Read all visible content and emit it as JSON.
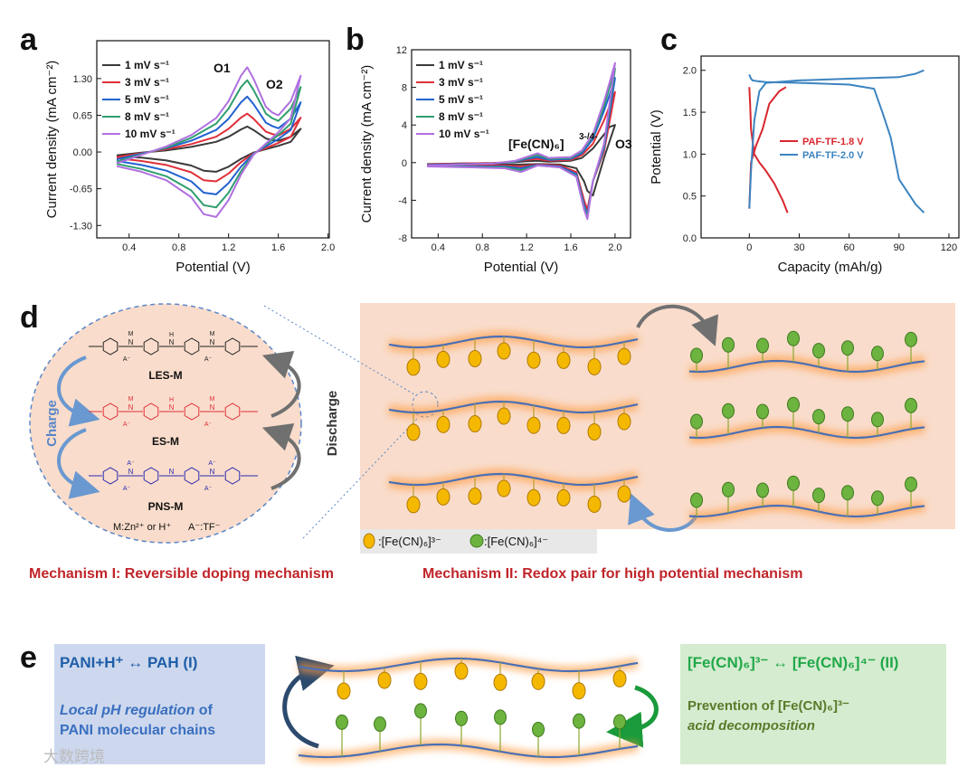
{
  "chart_data": [
    {
      "type": "line",
      "xlabel": "Potential (V)",
      "ylabel": "Current density (mA cm⁻²)",
      "x": [
        0.3,
        0.5,
        0.7,
        0.9,
        1.1,
        1.2,
        1.3,
        1.35,
        1.4,
        1.5,
        1.55,
        1.6,
        1.7,
        1.78,
        1.7,
        1.6,
        1.5,
        1.4,
        1.3,
        1.2,
        1.1,
        1.0,
        0.9,
        0.7,
        0.5,
        0.3
      ],
      "series": [
        {
          "name": "1 mV s⁻¹",
          "color": "#3a3a3a",
          "values": [
            -0.06,
            -0.01,
            0.03,
            0.09,
            0.18,
            0.27,
            0.4,
            0.45,
            0.39,
            0.24,
            0.21,
            0.2,
            0.27,
            0.41,
            0.18,
            0.11,
            0.05,
            -0.01,
            -0.12,
            -0.26,
            -0.35,
            -0.33,
            -0.24,
            -0.15,
            -0.1,
            -0.08
          ]
        },
        {
          "name": "3 mV s⁻¹",
          "color": "#e0303a",
          "values": [
            -0.09,
            -0.02,
            0.05,
            0.14,
            0.27,
            0.41,
            0.61,
            0.68,
            0.59,
            0.36,
            0.32,
            0.29,
            0.41,
            0.61,
            0.27,
            0.16,
            0.07,
            -0.02,
            -0.18,
            -0.38,
            -0.52,
            -0.5,
            -0.36,
            -0.23,
            -0.16,
            -0.11
          ]
        },
        {
          "name": "5 mV s⁻¹",
          "color": "#2262d0",
          "values": [
            -0.13,
            -0.03,
            0.07,
            0.2,
            0.39,
            0.59,
            0.88,
            0.98,
            0.85,
            0.52,
            0.46,
            0.42,
            0.59,
            0.88,
            0.39,
            0.23,
            0.1,
            -0.03,
            -0.26,
            -0.55,
            -0.75,
            -0.72,
            -0.52,
            -0.33,
            -0.23,
            -0.16
          ]
        },
        {
          "name": "8 mV s⁻¹",
          "color": "#2f9e6e",
          "values": [
            -0.17,
            -0.04,
            0.08,
            0.25,
            0.5,
            0.77,
            1.15,
            1.27,
            1.1,
            0.68,
            0.6,
            0.55,
            0.77,
            1.15,
            0.5,
            0.3,
            0.13,
            -0.04,
            -0.34,
            -0.72,
            -0.98,
            -0.94,
            -0.68,
            -0.43,
            -0.3,
            -0.21
          ]
        },
        {
          "name": "10 mV s⁻¹",
          "color": "#b070e0",
          "values": [
            -0.2,
            -0.05,
            0.1,
            0.3,
            0.6,
            0.9,
            1.35,
            1.5,
            1.3,
            0.8,
            0.7,
            0.65,
            0.9,
            1.35,
            0.6,
            0.35,
            0.15,
            -0.05,
            -0.4,
            -0.85,
            -1.15,
            -1.1,
            -0.8,
            -0.5,
            -0.35,
            -0.25
          ]
        }
      ],
      "xlim": [
        0.14,
        2.01
      ],
      "ylim": [
        -1.52,
        1.97
      ],
      "xticks": [
        0.4,
        0.8,
        1.2,
        1.6,
        {
          "value": 2,
          "label": "2.0"
        }
      ],
      "yticks": [
        {
          "value": -1.3,
          "label": "-1.30"
        },
        {
          "value": -0.65,
          "label": "-0.65"
        },
        {
          "value": 0,
          "label": "0.00"
        },
        {
          "value": 0.65,
          "label": "0.65"
        },
        {
          "value": 1.3,
          "label": "1.30"
        }
      ],
      "legend": "upper left",
      "annotations": [
        "O1",
        "O2"
      ]
    },
    {
      "type": "line",
      "xlabel": "Potential (V)",
      "ylabel": "Current density (mA cm⁻²)",
      "x": [
        0.3,
        0.6,
        0.9,
        1.1,
        1.2,
        1.3,
        1.4,
        1.6,
        1.7,
        1.8,
        1.9,
        1.95,
        2.0,
        1.9,
        1.8,
        1.75,
        1.72,
        1.65,
        1.5,
        1.3,
        1.15,
        1.0,
        0.7,
        0.3
      ],
      "series": [
        {
          "name": "1 mV s⁻¹",
          "color": "#3a3a3a",
          "values": [
            -0.15,
            -0.1,
            -0.05,
            0.05,
            0.15,
            0.2,
            0.1,
            0.2,
            0.5,
            1.5,
            3.0,
            3.8,
            4.0,
            0.5,
            -3.5,
            -3.0,
            -2.0,
            -0.6,
            -0.2,
            -0.15,
            -0.2,
            -0.2,
            -0.2,
            -0.15
          ]
        },
        {
          "name": "3 mV s⁻¹",
          "color": "#e0303a",
          "values": [
            -0.2,
            -0.1,
            -0.05,
            0.1,
            0.3,
            0.4,
            0.2,
            0.3,
            0.8,
            2.0,
            4.5,
            6.0,
            7.5,
            1.2,
            -2.0,
            -5.0,
            -4.0,
            -1.0,
            -0.3,
            -0.2,
            -0.4,
            -0.3,
            -0.3,
            -0.25
          ]
        },
        {
          "name": "5 mV s⁻¹",
          "color": "#2262d0",
          "values": [
            -0.25,
            -0.15,
            -0.1,
            0.1,
            0.4,
            0.6,
            0.3,
            0.4,
            1.0,
            2.5,
            5.5,
            7.2,
            9.0,
            1.5,
            -2.0,
            -5.5,
            -4.5,
            -1.2,
            -0.4,
            -0.25,
            -0.6,
            -0.4,
            -0.4,
            -0.3
          ]
        },
        {
          "name": "8 mV s⁻¹",
          "color": "#2f9e6e",
          "values": [
            -0.3,
            -0.2,
            -0.1,
            0.15,
            0.5,
            0.8,
            0.4,
            0.5,
            1.2,
            2.8,
            6.0,
            8.0,
            10.0,
            1.8,
            -2.0,
            -5.8,
            -4.8,
            -1.4,
            -0.5,
            -0.3,
            -0.8,
            -0.5,
            -0.45,
            -0.35
          ]
        },
        {
          "name": "10 mV s⁻¹",
          "color": "#b070e0",
          "values": [
            -0.3,
            -0.2,
            -0.1,
            0.2,
            0.6,
            1.0,
            0.5,
            0.6,
            1.3,
            3.0,
            6.5,
            8.5,
            10.6,
            2.0,
            -2.0,
            -6.0,
            -5.0,
            -1.5,
            -0.5,
            -0.3,
            -1.0,
            -0.6,
            -0.5,
            -0.4
          ]
        }
      ],
      "xlim": [
        0.16,
        2.14
      ],
      "ylim": [
        -8,
        12
      ],
      "xticks": [
        0.4,
        0.8,
        1.2,
        1.6,
        {
          "value": 2,
          "label": "2.0"
        }
      ],
      "yticks": [
        -8,
        -4,
        0,
        4,
        8,
        12
      ],
      "legend": "upper left",
      "annotations": [
        "[Fe(CN)₆]",
        "3-/4-",
        "O3"
      ]
    },
    {
      "type": "line",
      "xlabel": "Capacity (mAh/g)",
      "ylabel": "Potential (V)",
      "series": [
        {
          "name": "PAF-TF-1.8 V",
          "color": "#d8262e",
          "x": [
            0,
            0.5,
            1,
            3,
            6,
            10,
            15,
            20,
            23,
            null,
            0,
            1,
            4,
            8,
            12,
            18,
            22
          ],
          "values": [
            1.8,
            1.6,
            1.3,
            1.0,
            0.9,
            0.8,
            0.65,
            0.45,
            0.3,
            null,
            0.35,
            0.9,
            1.1,
            1.3,
            1.6,
            1.75,
            1.8
          ]
        },
        {
          "name": "PAF-TF-2.0 V",
          "color": "#3c84c0",
          "x": [
            0,
            1,
            2,
            5,
            10,
            30,
            60,
            75,
            80,
            85,
            90,
            100,
            105,
            null,
            0,
            1,
            3,
            6,
            10,
            30,
            60,
            90,
            100,
            105
          ],
          "values": [
            1.95,
            1.9,
            1.88,
            1.87,
            1.86,
            1.85,
            1.83,
            1.78,
            1.5,
            1.2,
            0.7,
            0.4,
            0.3,
            null,
            0.35,
            0.8,
            1.4,
            1.75,
            1.85,
            1.88,
            1.9,
            1.92,
            1.96,
            2.0
          ]
        }
      ],
      "xlim": [
        -29,
        126
      ],
      "ylim": [
        0,
        2.17
      ],
      "xticks": [
        0,
        30,
        60,
        90,
        120
      ],
      "yticks": [
        {
          "value": 0,
          "label": "0.0"
        },
        0.5,
        {
          "value": 1,
          "label": "1.0"
        },
        1.5,
        {
          "value": 2,
          "label": "2.0"
        }
      ],
      "legend": "center right"
    }
  ],
  "diagram": {
    "panel_labels": [
      "a",
      "b",
      "c",
      "d",
      "e"
    ],
    "d": {
      "structures": [
        "LES-M",
        "ES-M",
        "PNS-M"
      ],
      "atoms": [
        "N",
        "H",
        "M",
        "A⁻"
      ],
      "charge": "Charge",
      "discharge": "Discharge",
      "note": [
        "M:Zn²⁺ or H⁺",
        "A⁻:TF⁻"
      ],
      "legend": [
        ":[Fe(CN)₆]³⁻",
        ":[Fe(CN)₆]⁴⁻"
      ],
      "mechanisms": [
        "Mechanism I: Reversible doping mechanism",
        "Mechanism II: Redox pair for high potential mechanism"
      ]
    },
    "e": {
      "left_title": "PANI+H⁺ ↔ PAH (I)",
      "left_text": [
        "Local pH regulation",
        " of",
        "PANI molecular chains"
      ],
      "right_title": "[Fe(CN)₆]³⁻ ↔ [Fe(CN)₆]⁴⁻ (II)",
      "right_text": [
        "Prevention of [Fe(CN)₆]³⁻",
        "acid decomposition"
      ]
    },
    "watermark": "大数跨境"
  }
}
